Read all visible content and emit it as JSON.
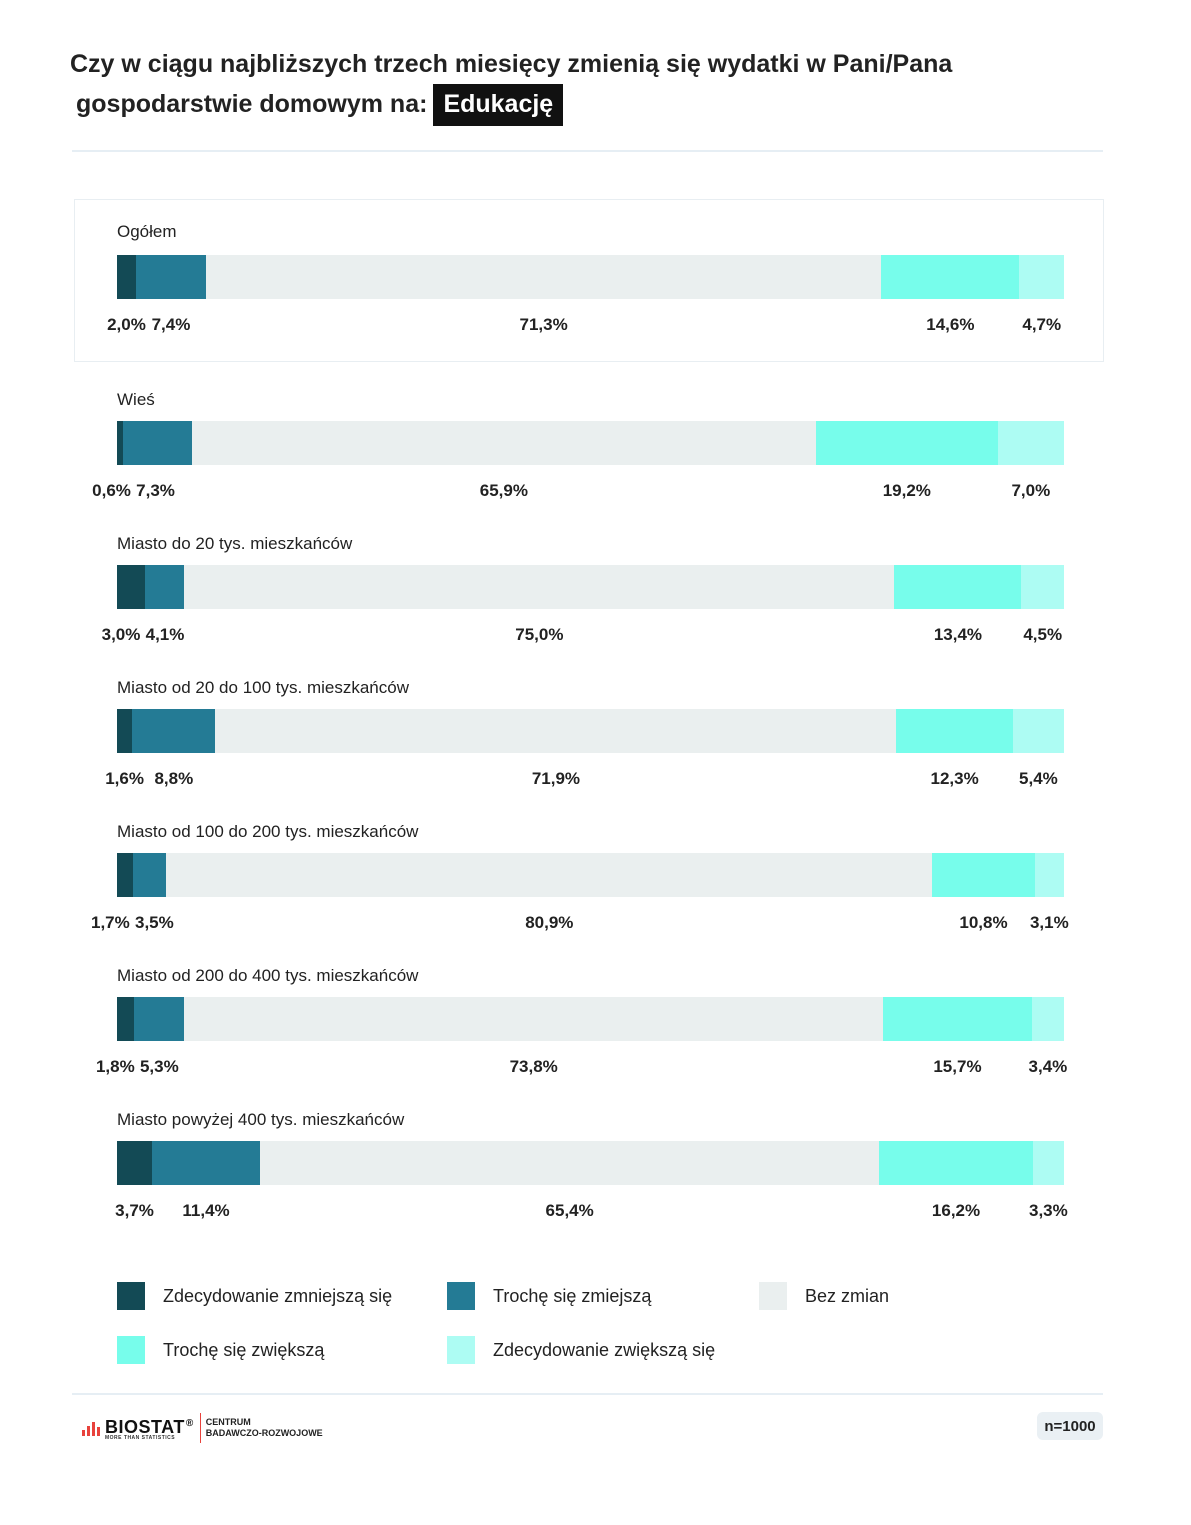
{
  "title": {
    "line1": "Czy w ciągu najbliższych trzech miesięcy zmienią się wydatki w Pani/Pana",
    "line2": "gospodarstwie domowym na:",
    "highlight": "Edukację"
  },
  "colors": {
    "zdecydowanie_zmniejsza": "#134a55",
    "troche_zmniejsza": "#247b95",
    "bez_zmian": "#eaefef",
    "troche_zwieksza": "#77fdeb",
    "zdecydowanie_zwieksza": "#adfcf3"
  },
  "chart_data": {
    "type": "bar",
    "orientation": "horizontal",
    "stacked": true,
    "unit": "%",
    "categories": [
      "Ogółem",
      "Wieś",
      "Miasto do 20 tys. mieszkańców",
      "Miasto od 20 do 100 tys. mieszkańców",
      "Miasto od 100 do 200 tys. mieszkańców",
      "Miasto od 200 do 400 tys. mieszkańców",
      "Miasto powyżej 400 tys. mieszkańców"
    ],
    "series": [
      {
        "name": "Zdecydowanie zmniejszą się",
        "values": [
          2.0,
          0.6,
          3.0,
          1.6,
          1.7,
          1.8,
          3.7
        ],
        "labels": [
          "2,0%",
          "0,6%",
          "3,0%",
          "1,6%",
          "1,7%",
          "1,8%",
          "3,7%"
        ]
      },
      {
        "name": "Trochę się zmiejszą",
        "values": [
          7.4,
          7.3,
          4.1,
          8.8,
          3.5,
          5.3,
          11.4
        ],
        "labels": [
          "7,4%",
          "7,3%",
          "4,1%",
          "8,8%",
          "3,5%",
          "5,3%",
          "11,4%"
        ]
      },
      {
        "name": "Bez zmian",
        "values": [
          71.3,
          65.9,
          75.0,
          71.9,
          80.9,
          73.8,
          65.4
        ],
        "labels": [
          "71,3%",
          "65,9%",
          "75,0%",
          "71,9%",
          "80,9%",
          "73,8%",
          "65,4%"
        ]
      },
      {
        "name": "Trochę się zwiększą",
        "values": [
          14.6,
          19.2,
          13.4,
          12.3,
          10.8,
          15.7,
          16.2
        ],
        "labels": [
          "14,6%",
          "19,2%",
          "13,4%",
          "12,3%",
          "10,8%",
          "15,7%",
          "16,2%"
        ]
      },
      {
        "name": "Zdecydowanie zwiększą się",
        "values": [
          4.7,
          7.0,
          4.5,
          5.4,
          3.1,
          3.4,
          3.3
        ],
        "labels": [
          "4,7%",
          "7,0%",
          "4,5%",
          "5,4%",
          "3,1%",
          "3,4%",
          "3,3%"
        ]
      }
    ],
    "legend_position": "bottom",
    "grid": false
  },
  "footer": {
    "brand": "BIOSTAT",
    "reg": "®",
    "tagline": "MORE THAN STATISTICS",
    "centrum_line1": "CENTRUM",
    "centrum_line2": "BADAWCZO-ROZWOJOWE",
    "sample": "n=1000"
  }
}
